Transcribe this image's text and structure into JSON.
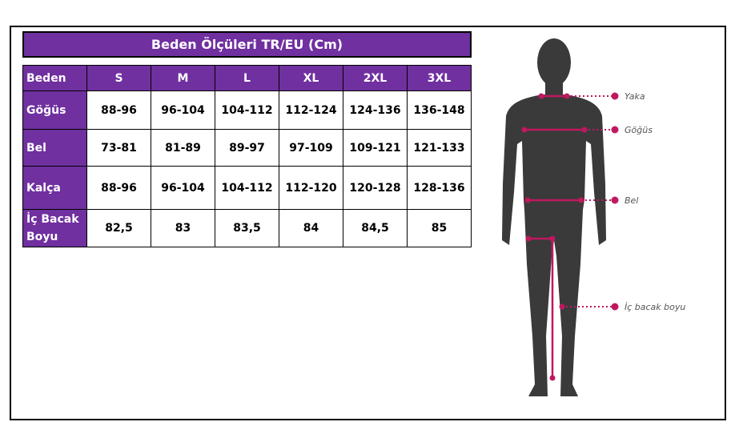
{
  "title": "Beden Ölçüleri TR/EU (Cm)",
  "table": {
    "header": [
      "Beden",
      "S",
      "M",
      "L",
      "XL",
      "2XL",
      "3XL"
    ],
    "rows": [
      [
        "Göğüs",
        "88-96",
        "96-104",
        "104-112",
        "112-124",
        "124-136",
        "136-148"
      ],
      [
        "Bel",
        "73-81",
        "81-89",
        "89-97",
        "97-109",
        "109-121",
        "121-133"
      ],
      [
        "Kalça",
        "88-96",
        "96-104",
        "104-112",
        "112-120",
        "120-128",
        "128-136"
      ],
      [
        "İç Bacak Boyu",
        "82,5",
        "83",
        "83,5",
        "84",
        "84,5",
        "85"
      ]
    ]
  },
  "figure": {
    "labels": [
      "Yaka",
      "Göğüs",
      "Bel",
      "İç bacak boyu"
    ]
  }
}
